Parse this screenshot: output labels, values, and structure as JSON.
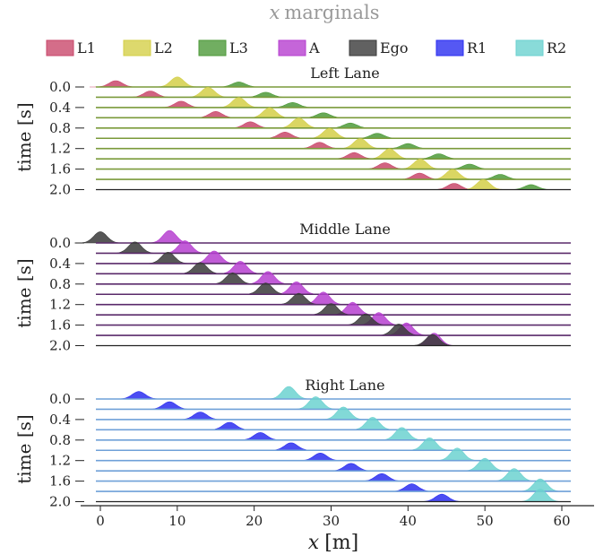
{
  "figure": {
    "title_var": "x",
    "title_text": "marginals",
    "xlabel_var": "x",
    "xlabel_unit": "[m]"
  },
  "legend": [
    {
      "label": "L1",
      "color": "#c9486b"
    },
    {
      "label": "L2",
      "color": "#d4cf48"
    },
    {
      "label": "L3",
      "color": "#4e9a3a"
    },
    {
      "label": "A",
      "color": "#b63fd0"
    },
    {
      "label": "Ego",
      "color": "#3a3a3a"
    },
    {
      "label": "R1",
      "color": "#2b2ef0"
    },
    {
      "label": "R2",
      "color": "#6cd2d0"
    }
  ],
  "chart_data": {
    "type": "ridgeline",
    "xlim": [
      -2,
      65
    ],
    "x_ticks": [
      0,
      10,
      20,
      30,
      40,
      50,
      60
    ],
    "ylabel": "time [s]",
    "time_ticks": [
      "0.0",
      "0.4",
      "0.8",
      "1.2",
      "1.6",
      "2.0"
    ],
    "times": [
      0.0,
      0.2,
      0.4,
      0.6,
      0.8,
      1.0,
      1.2,
      1.4,
      1.6,
      1.8,
      2.0
    ],
    "lanes": [
      {
        "name": "Left Lane",
        "line_color": "#7a9a3a",
        "series": [
          {
            "name": "L1",
            "color": "#c9486b",
            "x": [
              2.0,
              6.5,
              10.5,
              15.0,
              19.5,
              24.0,
              28.5,
              33.0,
              37.0,
              41.5,
              46.0
            ],
            "peak": 0.5
          },
          {
            "name": "L2",
            "color": "#d4cf48",
            "x": [
              10.0,
              14.0,
              18.0,
              22.0,
              25.8,
              29.8,
              33.8,
              37.6,
              41.6,
              45.8,
              49.8
            ],
            "peak": 0.8
          },
          {
            "name": "L3",
            "color": "#4e9a3a",
            "x": [
              18.0,
              21.5,
              25.0,
              29.0,
              32.5,
              36.0,
              40.0,
              44.0,
              48.0,
              52.0,
              56.0
            ],
            "peak": 0.4
          }
        ]
      },
      {
        "name": "Middle Lane",
        "line_color": "#5a2a6a",
        "series": [
          {
            "name": "A",
            "color": "#b63fd0",
            "x": [
              9.0,
              11.0,
              14.8,
              18.2,
              21.8,
              25.5,
              29.0,
              32.8,
              36.2,
              39.8,
              43.4
            ],
            "peak": 1.0
          },
          {
            "name": "Ego",
            "color": "#3a3a3a",
            "x": [
              0.0,
              4.5,
              8.8,
              13.0,
              17.2,
              21.5,
              25.8,
              30.0,
              34.5,
              38.8,
              43.2
            ],
            "peak": 0.9
          }
        ]
      },
      {
        "name": "Right Lane",
        "line_color": "#6fa0d8",
        "series": [
          {
            "name": "R1",
            "color": "#2b2ef0",
            "x": [
              5.0,
              9.0,
              13.0,
              16.8,
              20.8,
              24.8,
              28.6,
              32.6,
              36.6,
              40.5,
              44.4
            ],
            "peak": 0.6
          },
          {
            "name": "R2",
            "color": "#6cd2d0",
            "x": [
              24.5,
              28.0,
              31.6,
              35.4,
              39.2,
              42.8,
              46.4,
              50.0,
              53.8,
              57.2,
              57.2
            ],
            "peak": 1.0
          }
        ]
      }
    ]
  }
}
